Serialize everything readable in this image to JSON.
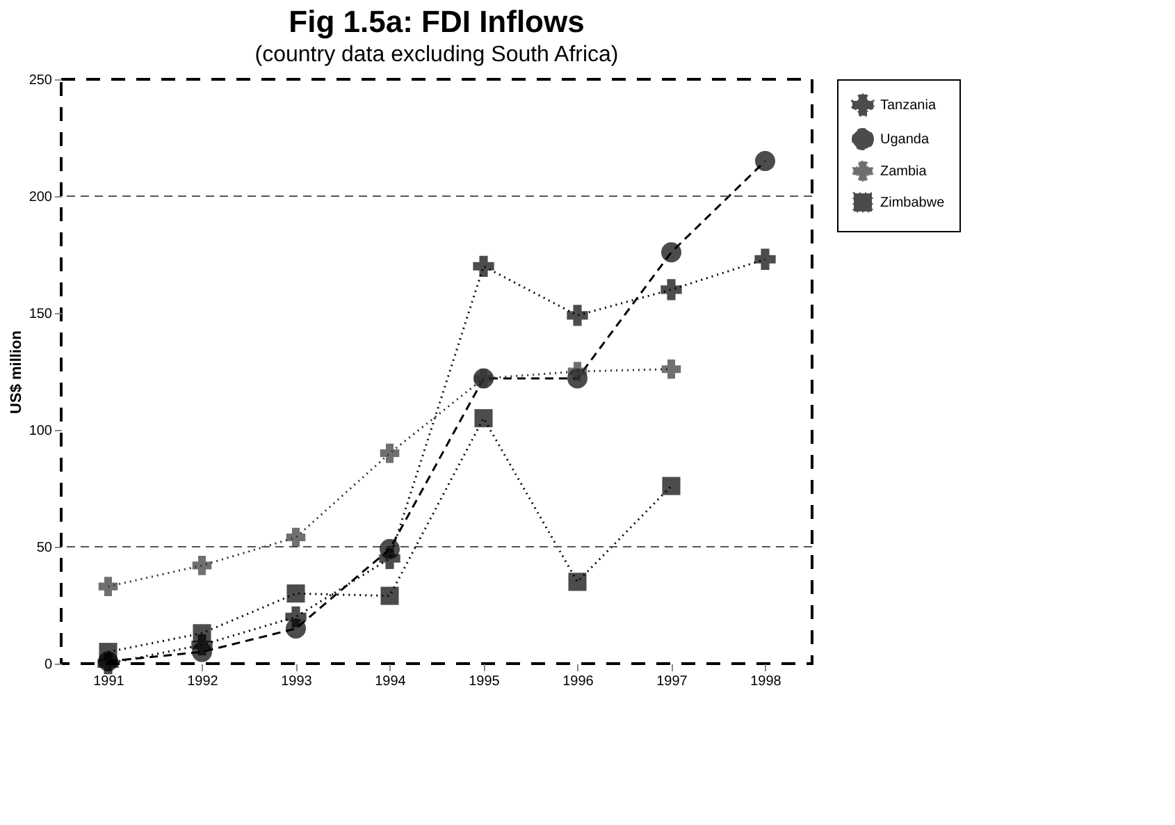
{
  "chart_data": {
    "type": "line",
    "title": "Fig 1.5a: FDI Inflows",
    "subtitle": "(country data excluding South Africa)",
    "ylabel": "US$ million",
    "categories": [
      "1991",
      "1992",
      "1993",
      "1994",
      "1995",
      "1996",
      "1997",
      "1998"
    ],
    "series": [
      {
        "name": "Tanzania",
        "color": "#000000",
        "marker": "cross",
        "line_style": "dotted",
        "values": [
          0,
          8,
          20,
          45,
          170,
          149,
          160,
          173
        ]
      },
      {
        "name": "Uganda",
        "color": "#000000",
        "marker": "circle",
        "line_style": "dashed",
        "values": [
          1,
          5,
          15,
          49,
          122,
          122,
          176,
          215
        ]
      },
      {
        "name": "Zambia",
        "color": "#333333",
        "marker": "cross",
        "line_style": "dotted",
        "values": [
          33,
          42,
          54,
          90,
          122,
          125,
          126,
          null
        ]
      },
      {
        "name": "Zimbabwe",
        "color": "#000000",
        "marker": "square",
        "line_style": "dotted",
        "values": [
          5,
          13,
          30,
          29,
          105,
          35,
          76,
          null
        ]
      }
    ],
    "ylim": [
      0,
      250
    ],
    "yticks": [
      0,
      50,
      100,
      150,
      200,
      250
    ],
    "ref_lines": [
      {
        "axis": "y",
        "value": 50,
        "color": "#555555",
        "line_style": "dashed"
      },
      {
        "axis": "y",
        "value": 200,
        "color": "#555555",
        "line_style": "dashed"
      }
    ],
    "grid": false,
    "legend": "right"
  }
}
